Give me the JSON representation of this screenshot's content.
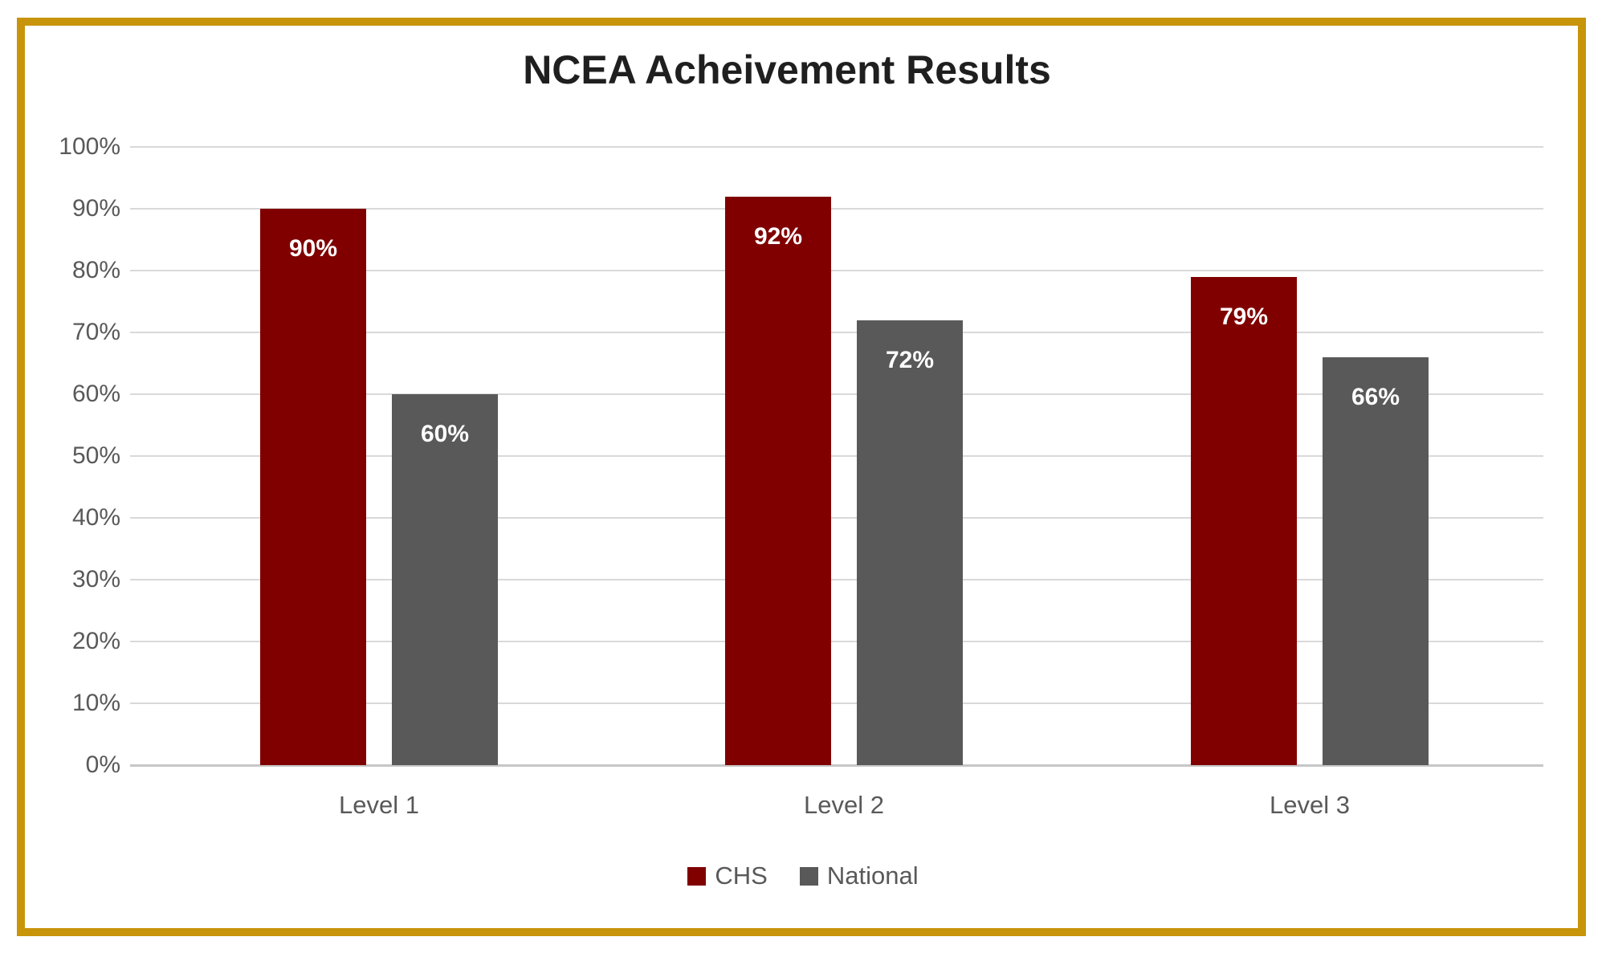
{
  "frame": {
    "border_color": "#C8940A"
  },
  "chart_data": {
    "type": "bar",
    "title": "NCEA Acheivement Results",
    "categories": [
      "Level 1",
      "Level 2",
      "Level 3"
    ],
    "series": [
      {
        "name": "CHS",
        "color": "#800000",
        "values": [
          90,
          92,
          79
        ],
        "labels": [
          "90%",
          "92%",
          "79%"
        ]
      },
      {
        "name": "National",
        "color": "#595959",
        "values": [
          60,
          72,
          66
        ],
        "labels": [
          "60%",
          "72%",
          "66%"
        ]
      }
    ],
    "y_axis": {
      "min": 0,
      "max": 100,
      "step": 10,
      "tick_labels": [
        "0%",
        "10%",
        "20%",
        "30%",
        "40%",
        "50%",
        "60%",
        "70%",
        "80%",
        "90%",
        "100%"
      ]
    },
    "xlabel": "",
    "ylabel": "",
    "grid": true,
    "legend_position": "bottom",
    "data_label_position": "inside-end",
    "colors": {
      "gridline": "#D9D9D9",
      "axis_line": "#C6C6C6",
      "tick_text": "#595959",
      "title_text": "#1F1F1F",
      "data_label_text": "#FFFFFF"
    }
  }
}
